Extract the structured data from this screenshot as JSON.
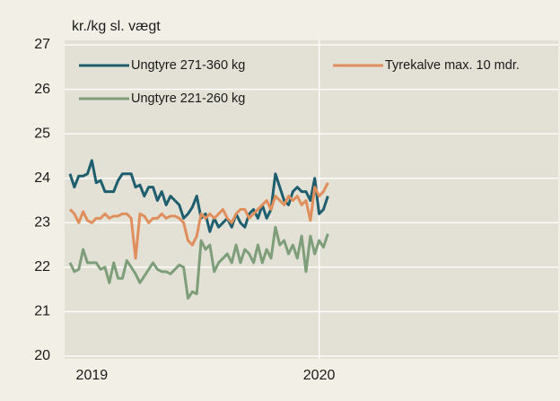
{
  "chart_data": {
    "type": "line",
    "ylabel": "kr./kg sl. vægt",
    "categories": [
      null,
      null,
      null,
      null,
      null,
      "2019",
      null,
      null,
      null,
      null,
      null,
      null,
      null,
      null,
      null,
      null,
      null,
      null,
      null,
      null,
      null,
      null,
      null,
      null,
      null,
      null,
      null,
      null,
      null,
      null,
      null,
      null,
      null,
      null,
      null,
      null,
      null,
      null,
      null,
      null,
      null,
      null,
      null,
      null,
      null,
      null,
      null,
      null,
      null,
      null,
      null,
      null,
      null,
      null,
      null,
      null,
      null,
      "2020",
      null,
      null
    ],
    "series": [
      {
        "name": "Ungtyre 271-360 kg",
        "color": "#1e5e6e",
        "values": [
          24.1,
          23.8,
          24.05,
          24.05,
          24.1,
          24.4,
          23.9,
          23.95,
          23.7,
          23.7,
          23.7,
          23.95,
          24.1,
          24.1,
          24.1,
          23.8,
          23.85,
          23.6,
          23.8,
          23.8,
          23.5,
          23.7,
          23.4,
          23.6,
          23.5,
          23.4,
          23.1,
          23.2,
          23.35,
          23.6,
          23.1,
          23.2,
          22.8,
          23.1,
          22.9,
          23.0,
          23.1,
          22.9,
          23.2,
          23.0,
          22.9,
          23.2,
          23.3,
          23.1,
          23.4,
          23.1,
          23.3,
          24.1,
          23.8,
          23.5,
          23.4,
          23.7,
          23.8,
          23.7,
          23.7,
          23.5,
          24.0,
          23.2,
          23.3,
          23.6
        ]
      },
      {
        "name": "Tyrekalve max. 10 mdr.",
        "color": "#e08f5c",
        "values": [
          23.3,
          23.2,
          23.0,
          23.25,
          23.05,
          23.0,
          23.1,
          23.1,
          23.2,
          23.1,
          23.15,
          23.15,
          23.2,
          23.2,
          23.1,
          22.2,
          23.2,
          23.15,
          23.0,
          23.1,
          23.1,
          23.2,
          23.1,
          23.15,
          23.15,
          23.1,
          23.0,
          22.6,
          22.5,
          22.7,
          23.2,
          23.1,
          23.2,
          23.1,
          23.2,
          23.3,
          23.1,
          23.0,
          23.2,
          23.3,
          23.3,
          23.1,
          23.2,
          23.3,
          23.4,
          23.5,
          23.3,
          23.6,
          23.5,
          23.4,
          23.6,
          23.5,
          23.6,
          23.4,
          23.5,
          23.05,
          23.8,
          23.6,
          23.7,
          23.9
        ]
      },
      {
        "name": "Ungtyre 221-260 kg",
        "color": "#7e9e79",
        "values": [
          22.1,
          21.9,
          21.95,
          22.4,
          22.1,
          22.1,
          22.1,
          21.95,
          22.0,
          21.65,
          22.1,
          21.75,
          21.75,
          22.15,
          22.0,
          21.85,
          21.65,
          21.8,
          21.95,
          22.1,
          21.95,
          21.9,
          21.9,
          21.85,
          21.95,
          22.05,
          22.0,
          21.3,
          21.45,
          21.4,
          22.6,
          22.4,
          22.5,
          21.9,
          22.1,
          22.2,
          22.3,
          22.1,
          22.5,
          22.1,
          22.4,
          22.3,
          22.1,
          22.5,
          22.1,
          22.4,
          22.2,
          22.9,
          22.5,
          22.6,
          22.3,
          22.5,
          22.2,
          22.7,
          21.9,
          22.7,
          22.3,
          22.6,
          22.45,
          22.75
        ]
      }
    ],
    "ylim": [
      20,
      27
    ],
    "yticks": [
      20,
      21,
      22,
      23,
      24,
      25,
      26,
      27
    ],
    "grid": true
  }
}
